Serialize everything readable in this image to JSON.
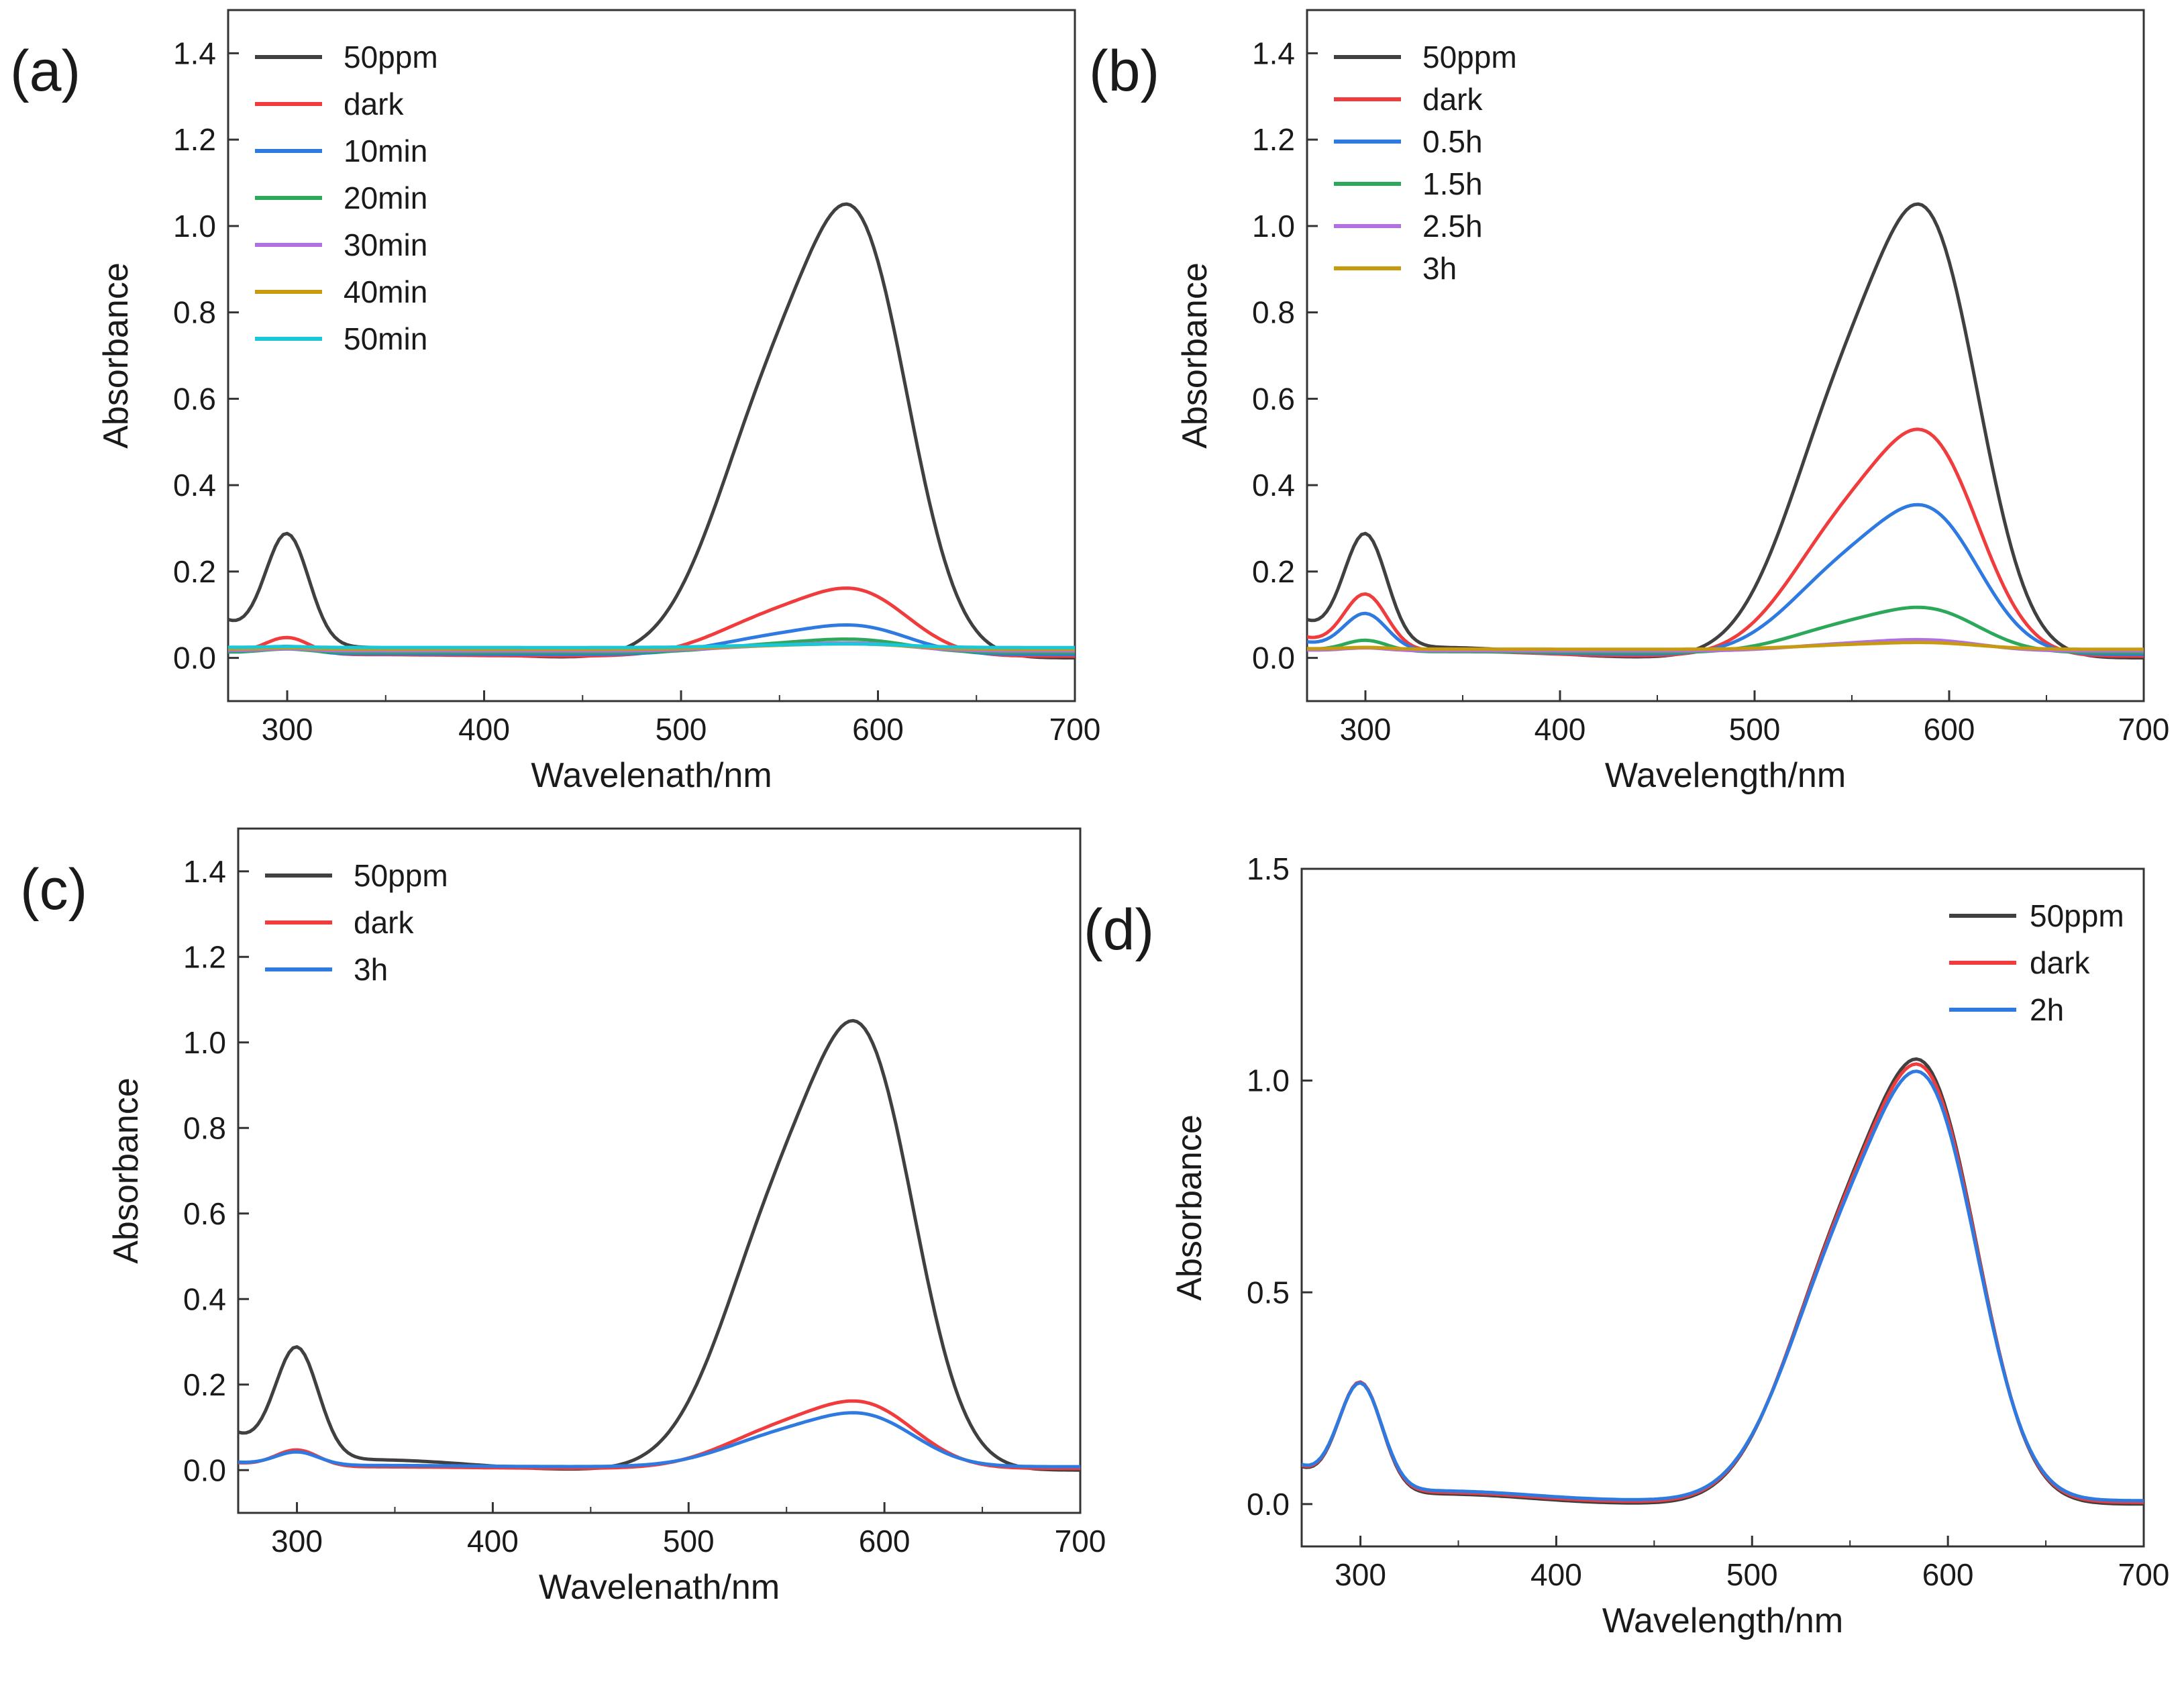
{
  "chart_data": [
    {
      "type": "line",
      "panel_label": "(a)",
      "xlabel": "Wavelenath/nm",
      "ylabel": "Absorbance",
      "xlim": [
        270,
        700
      ],
      "ylim": [
        -0.1,
        1.5
      ],
      "xticks": [
        300,
        400,
        500,
        600,
        700
      ],
      "yticks": [
        0.0,
        0.2,
        0.4,
        0.6,
        0.8,
        1.0,
        1.2,
        1.4
      ],
      "ytick_decimals": 1,
      "legend_position": "top-left",
      "series": [
        {
          "name": "50ppm",
          "color": "#404040",
          "scale": 1.0
        },
        {
          "name": "dark",
          "color": "#f03c3c",
          "scale": 0.15
        },
        {
          "name": "10min",
          "color": "#2f7ae0",
          "scale": 0.065
        },
        {
          "name": "20min",
          "color": "#2ca85a",
          "scale": 0.03
        },
        {
          "name": "30min",
          "color": "#b070e0",
          "scale": 0.018
        },
        {
          "name": "40min",
          "color": "#c89a10",
          "scale": 0.012
        },
        {
          "name": "50min",
          "color": "#19c8d8",
          "scale": 0.008
        }
      ]
    },
    {
      "type": "line",
      "panel_label": "(b)",
      "xlabel": "Wavelength/nm",
      "ylabel": "Absorbance",
      "xlim": [
        270,
        700
      ],
      "ylim": [
        -0.1,
        1.5
      ],
      "xticks": [
        300,
        400,
        500,
        600,
        700
      ],
      "yticks": [
        0.0,
        0.2,
        0.4,
        0.6,
        0.8,
        1.0,
        1.2,
        1.4
      ],
      "ytick_decimals": 1,
      "legend_position": "top-left",
      "series": [
        {
          "name": "50ppm",
          "color": "#404040",
          "scale": 1.0
        },
        {
          "name": "dark",
          "color": "#f03c3c",
          "scale": 0.5
        },
        {
          "name": "0.5h",
          "color": "#2f7ae0",
          "scale": 0.33
        },
        {
          "name": "1.5h",
          "color": "#2ca85a",
          "scale": 0.1
        },
        {
          "name": "2.5h",
          "color": "#b070e0",
          "scale": 0.025
        },
        {
          "name": "3h",
          "color": "#c89a10",
          "scale": 0.015
        }
      ]
    },
    {
      "type": "line",
      "panel_label": "(c)",
      "xlabel": "Wavelenath/nm",
      "ylabel": "Absorbance",
      "xlim": [
        270,
        700
      ],
      "ylim": [
        -0.1,
        1.5
      ],
      "xticks": [
        300,
        400,
        500,
        600,
        700
      ],
      "yticks": [
        0.0,
        0.2,
        0.4,
        0.6,
        0.8,
        1.0,
        1.2,
        1.4
      ],
      "ytick_decimals": 1,
      "legend_position": "top-left",
      "series": [
        {
          "name": "50ppm",
          "color": "#404040",
          "scale": 1.0
        },
        {
          "name": "dark",
          "color": "#f03c3c",
          "scale": 0.15
        },
        {
          "name": "3h",
          "color": "#2f7ae0",
          "scale": 0.12
        }
      ]
    },
    {
      "type": "line",
      "panel_label": "(d)",
      "xlabel": "Wavelength/nm",
      "ylabel": "Absorbance",
      "xlim": [
        270,
        700
      ],
      "ylim": [
        -0.1,
        1.5
      ],
      "xticks": [
        300,
        400,
        500,
        600,
        700
      ],
      "yticks": [
        0.0,
        0.5,
        1.0,
        1.5
      ],
      "ytick_decimals": 1,
      "legend_position": "top-right",
      "series": [
        {
          "name": "50ppm",
          "color": "#404040",
          "scale": 1.0
        },
        {
          "name": "dark",
          "color": "#f03c3c",
          "scale": 0.985
        },
        {
          "name": "2h",
          "color": "#2f7ae0",
          "scale": 0.965
        }
      ]
    }
  ]
}
